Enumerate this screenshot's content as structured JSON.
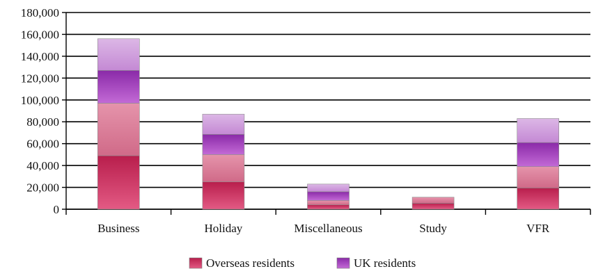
{
  "chart_data": {
    "type": "bar",
    "stacked": true,
    "categories": [
      "Business",
      "Holiday",
      "Miscellaneous",
      "Study",
      "VFR"
    ],
    "series": [
      {
        "name": "Overseas residents",
        "values": [
          97000,
          50000,
          8000,
          11000,
          39000
        ],
        "color": "#c0305a",
        "split_values": [
          49000,
          25000,
          4000,
          5500,
          19500
        ]
      },
      {
        "name": "UK residents",
        "values": [
          59000,
          37000,
          15000,
          0,
          44000
        ],
        "color": "#9a3cb8",
        "split_values": [
          30000,
          18500,
          8000,
          0,
          22000
        ]
      }
    ],
    "ylim": [
      0,
      180000
    ],
    "yticks": [
      0,
      20000,
      40000,
      60000,
      80000,
      100000,
      120000,
      140000,
      160000,
      180000
    ],
    "ytick_labels": [
      "0",
      "20,000",
      "40,000",
      "60,000",
      "80,000",
      "100,000",
      "120,000",
      "140,000",
      "160,000",
      "180,000"
    ],
    "grid": true,
    "legend_position": "bottom-center",
    "title": "",
    "xlabel": "",
    "ylabel": ""
  }
}
